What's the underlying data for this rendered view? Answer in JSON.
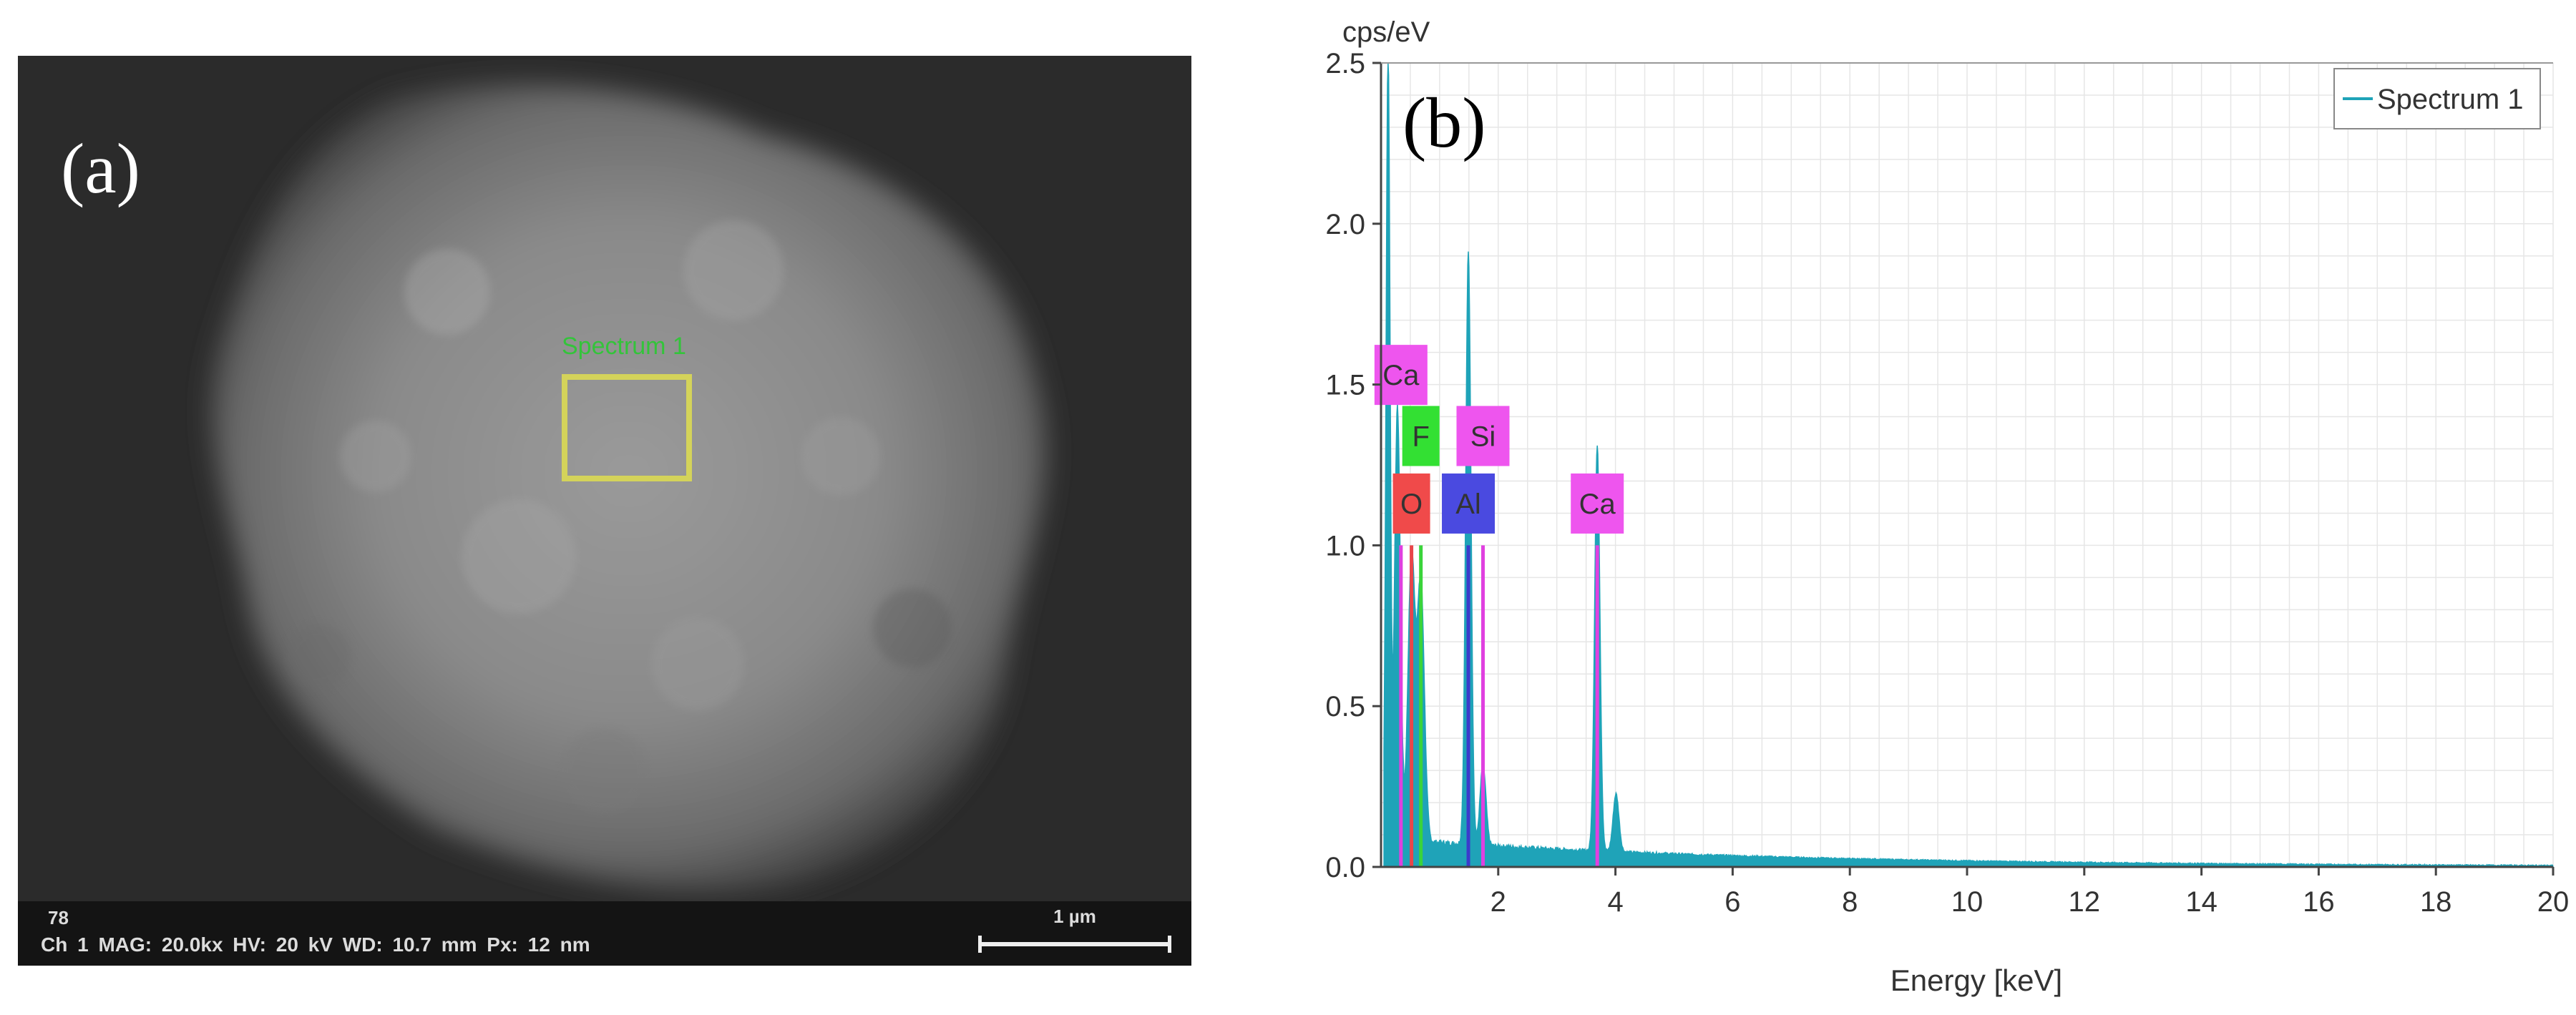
{
  "panel_a": {
    "label": "(a)",
    "roi_label": "Spectrum 1",
    "info_id": "78",
    "info_params": "Ch 1   MAG: 20.0kx   HV: 20 kV   WD: 10.7 mm   Px: 12 nm",
    "scale_bar_label": "1 µm",
    "colors": {
      "roi": "#d4d35a",
      "roi_label": "#33c43a",
      "background": "#2b2b2b"
    }
  },
  "chart_data": {
    "type": "area",
    "panel_label": "(b)",
    "ylabel": "cps/eV",
    "xlabel": "Energy [keV]",
    "xlim": [
      0,
      20
    ],
    "ylim": [
      0,
      2.5
    ],
    "x_ticks": [
      "2",
      "4",
      "6",
      "8",
      "10",
      "12",
      "14",
      "16",
      "18",
      "20"
    ],
    "y_ticks": [
      "0.0",
      "0.5",
      "1.0",
      "1.5",
      "2.0",
      "2.5"
    ],
    "grid": true,
    "legend": {
      "position": "top-right",
      "entries": [
        "Spectrum 1"
      ]
    },
    "series": [
      {
        "name": "Spectrum 1",
        "color": "#1fa3b8",
        "peaks": [
          {
            "x": 0.12,
            "y": 2.5
          },
          {
            "x": 0.28,
            "y": 1.35
          },
          {
            "x": 0.52,
            "y": 0.88
          },
          {
            "x": 0.68,
            "y": 0.8
          },
          {
            "x": 1.49,
            "y": 1.84
          },
          {
            "x": 1.74,
            "y": 0.25
          },
          {
            "x": 3.69,
            "y": 1.26
          },
          {
            "x": 4.01,
            "y": 0.18
          }
        ],
        "background_level": 0.06
      }
    ],
    "element_labels": [
      {
        "text": "O",
        "x": 0.52,
        "line_color": "#e8454a",
        "box_color": "#f04a4a",
        "level": 1.13
      },
      {
        "text": "F",
        "x": 0.68,
        "line_color": "#3ad43a",
        "box_color": "#33e033",
        "level": 1.34
      },
      {
        "text": "Ca",
        "x": 0.34,
        "line_color": "#e040e0",
        "box_color": "#ee55ee",
        "level": 1.53
      },
      {
        "text": "Al",
        "x": 1.49,
        "line_color": "#3b3bcc",
        "box_color": "#4a4ae0",
        "level": 1.13
      },
      {
        "text": "Si",
        "x": 1.74,
        "line_color": "#e040e0",
        "box_color": "#ee55ee",
        "level": 1.34
      },
      {
        "text": "Ca",
        "x": 3.69,
        "line_color": "#e040e0",
        "box_color": "#ee55ee",
        "level": 1.13
      }
    ]
  }
}
